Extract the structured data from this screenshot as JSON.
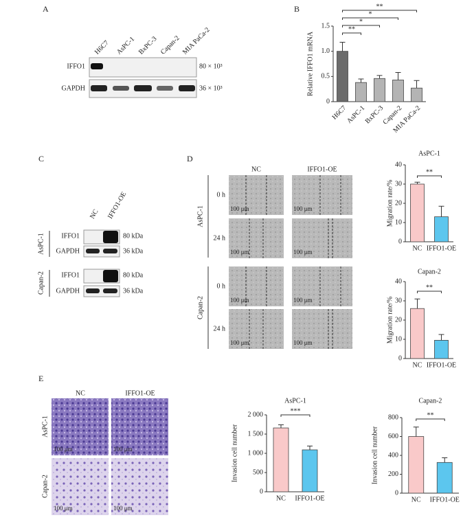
{
  "panels": {
    "A": {
      "label": "A",
      "lanes": [
        "H6C7",
        "AsPC-1",
        "BxPC-3",
        "Capan-2",
        "MIA PaCa-2"
      ],
      "rows": [
        "IFFO1",
        "GAPDH"
      ],
      "sizes": [
        "80 × 10³",
        "36 × 10³"
      ]
    },
    "B": {
      "label": "B"
    },
    "C": {
      "label": "C",
      "lanes": [
        "NC",
        "IFFO1-OE"
      ],
      "groups": [
        "AsPC-1",
        "Capan-2"
      ],
      "rows": [
        "IFFO1",
        "GAPDH"
      ],
      "sizes": [
        "80 kDa",
        "36 kDa"
      ]
    },
    "D": {
      "label": "D",
      "columns": [
        "NC",
        "IFFO1-OE"
      ],
      "groups": [
        "AsPC-1",
        "Capan-2"
      ],
      "times": [
        "0 h",
        "24 h"
      ],
      "scale": "100 μm"
    },
    "E": {
      "label": "E",
      "columns": [
        "NC",
        "IFFO1-OE"
      ],
      "groups": [
        "AsPC-1",
        "Capan-2"
      ],
      "scale": "100 μm"
    }
  },
  "chart_data": [
    {
      "type": "bar",
      "ylabel": "Relative IFFO1 mRNA",
      "categories": [
        "H6C7",
        "AsPC-1",
        "BxPC-3",
        "Capan-2",
        "MIA PaCa-2"
      ],
      "values": [
        1.0,
        0.38,
        0.46,
        0.43,
        0.27
      ],
      "errors": [
        0.18,
        0.07,
        0.06,
        0.15,
        0.15
      ],
      "colors": [
        "#6b6b6b",
        "#b4b4b4",
        "#b4b4b4",
        "#b4b4b4",
        "#b4b4b4"
      ],
      "ylim": [
        0,
        1.5
      ],
      "yticks": [
        0,
        0.5,
        {
          "value": 1,
          "label": "1.0"
        },
        1.5
      ],
      "annotations": [
        {
          "text": "**",
          "between": [
            "H6C7",
            "AsPC-1"
          ]
        },
        {
          "text": "*",
          "between": [
            "H6C7",
            "BxPC-3"
          ]
        },
        {
          "text": "*",
          "between": [
            "H6C7",
            "Capan-2"
          ]
        },
        {
          "text": "**",
          "between": [
            "H6C7",
            "MIA PaCa-2"
          ]
        }
      ]
    },
    {
      "type": "bar",
      "title": "AsPC-1",
      "ylabel": "Migration rate/%",
      "categories": [
        "NC",
        "IFFO1-OE"
      ],
      "values": [
        30,
        13
      ],
      "errors": [
        1,
        5.5
      ],
      "colors": [
        "#f9c9c9",
        "#5cc6ee"
      ],
      "ylim": [
        0,
        40
      ],
      "yticks": [
        0,
        10,
        20,
        30,
        40
      ],
      "annotations": [
        {
          "text": "**",
          "between": [
            "NC",
            "IFFO1-OE"
          ]
        }
      ]
    },
    {
      "type": "bar",
      "title": "Capan-2",
      "ylabel": "Migration rate/%",
      "categories": [
        "NC",
        "IFFO1-OE"
      ],
      "values": [
        26,
        9.5
      ],
      "errors": [
        5,
        3
      ],
      "colors": [
        "#f9c9c9",
        "#5cc6ee"
      ],
      "ylim": [
        0,
        40
      ],
      "yticks": [
        0,
        10,
        20,
        30,
        40
      ],
      "annotations": [
        {
          "text": "**",
          "between": [
            "NC",
            "IFFO1-OE"
          ]
        }
      ]
    },
    {
      "type": "bar",
      "title": "AsPC-1",
      "ylabel": "Invasion cell number",
      "categories": [
        "NC",
        "IFFO1-OE"
      ],
      "values": [
        1660,
        1090
      ],
      "errors": [
        80,
        100
      ],
      "colors": [
        "#f9c9c9",
        "#5cc6ee"
      ],
      "ylim": [
        0,
        2000
      ],
      "yticks": [
        0,
        500,
        {
          "value": 1000,
          "label": "1 000"
        },
        {
          "value": 1500,
          "label": "1 500"
        },
        {
          "value": 2000,
          "label": "2 000"
        }
      ],
      "annotations": [
        {
          "text": "***",
          "between": [
            "NC",
            "IFFO1-OE"
          ]
        }
      ]
    },
    {
      "type": "bar",
      "title": "Capan-2",
      "ylabel": "Invasion cell number",
      "categories": [
        "NC",
        "IFFO1-OE"
      ],
      "values": [
        600,
        325
      ],
      "errors": [
        100,
        50
      ],
      "colors": [
        "#f9c9c9",
        "#5cc6ee"
      ],
      "ylim": [
        0,
        800
      ],
      "yticks": [
        0,
        200,
        400,
        600,
        800
      ],
      "annotations": [
        {
          "text": "**",
          "between": [
            "NC",
            "IFFO1-OE"
          ]
        }
      ]
    }
  ]
}
